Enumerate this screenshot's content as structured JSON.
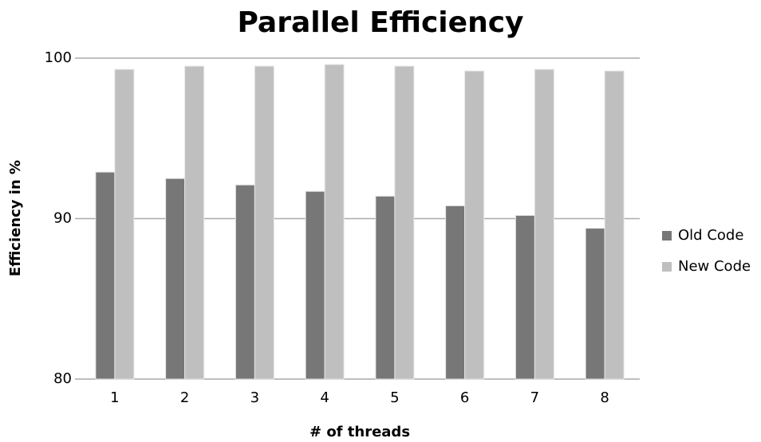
{
  "chart_data": {
    "type": "bar",
    "title": "Parallel Efficiency",
    "x_label": "# of threads",
    "y_label": "Efficiency in %",
    "categories": [
      "1",
      "2",
      "3",
      "4",
      "5",
      "6",
      "7",
      "8"
    ],
    "series": [
      {
        "name": "Old Code",
        "color": "#777777",
        "values": [
          92.9,
          92.5,
          92.1,
          91.7,
          91.4,
          90.8,
          90.2,
          89.4
        ]
      },
      {
        "name": "New Code",
        "color": "#bfbfbf",
        "values": [
          99.3,
          99.5,
          99.5,
          99.6,
          99.5,
          99.2,
          99.3,
          99.2
        ]
      }
    ],
    "ylim": [
      80,
      100
    ],
    "yticks": [
      80,
      90,
      100
    ],
    "grid": true,
    "legend": "right"
  }
}
